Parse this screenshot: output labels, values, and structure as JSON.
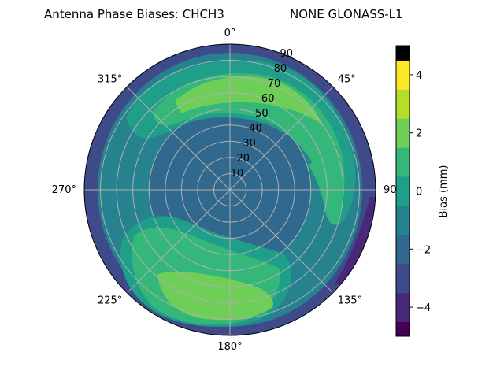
{
  "chart_data": {
    "type": "polar-contour",
    "title_left": "Antenna Phase Biases: CHCH3",
    "title_right": "NONE GLONASS-L1",
    "azimuth_labels": [
      "0°",
      "45°",
      "90°",
      "135°",
      "180°",
      "225°",
      "270°",
      "315°"
    ],
    "zenith_ticks": [
      "10",
      "20",
      "30",
      "40",
      "50",
      "60",
      "70",
      "80",
      "90"
    ],
    "radial_range": [
      0,
      90
    ],
    "grid": true,
    "colorbar": {
      "label": "Bias (mm)",
      "ticks": [
        "−4",
        "−2",
        "0",
        "2",
        "4"
      ],
      "range": [
        -5,
        5
      ],
      "levels": [
        -5,
        -4.5,
        -3.5,
        -2.5,
        -1.5,
        -0.5,
        0.5,
        1.5,
        2.5,
        3.5,
        4.5,
        5
      ],
      "colors": [
        "#440154",
        "#482878",
        "#3e4a89",
        "#31688e",
        "#26828e",
        "#1f9e89",
        "#35b779",
        "#6ece58",
        "#b5de2b",
        "#fde725"
      ]
    },
    "field_regions": [
      {
        "name": "outer-ring",
        "level": -2.5,
        "color": "#3e4a89"
      },
      {
        "name": "lower-right-edge",
        "level": -3.5,
        "color": "#482878"
      },
      {
        "name": "main-disc",
        "level": 0.5,
        "color": "#26828e"
      },
      {
        "name": "inner-ring",
        "level": -0.5,
        "color": "#31688e"
      },
      {
        "name": "upper-band",
        "level": 1.5,
        "color": "#1f9e89"
      },
      {
        "name": "upper-band-core",
        "level": 2.5,
        "color": "#35b779"
      },
      {
        "name": "upper-peak",
        "level": 3.5,
        "color": "#6ece58"
      },
      {
        "name": "lower-band",
        "level": 1.5,
        "color": "#1f9e89"
      },
      {
        "name": "lower-band-core",
        "level": 2.5,
        "color": "#35b779"
      },
      {
        "name": "lower-peak",
        "level": 3.5,
        "color": "#6ece58"
      },
      {
        "name": "right-arc",
        "level": 2.5,
        "color": "#35b779"
      }
    ]
  }
}
